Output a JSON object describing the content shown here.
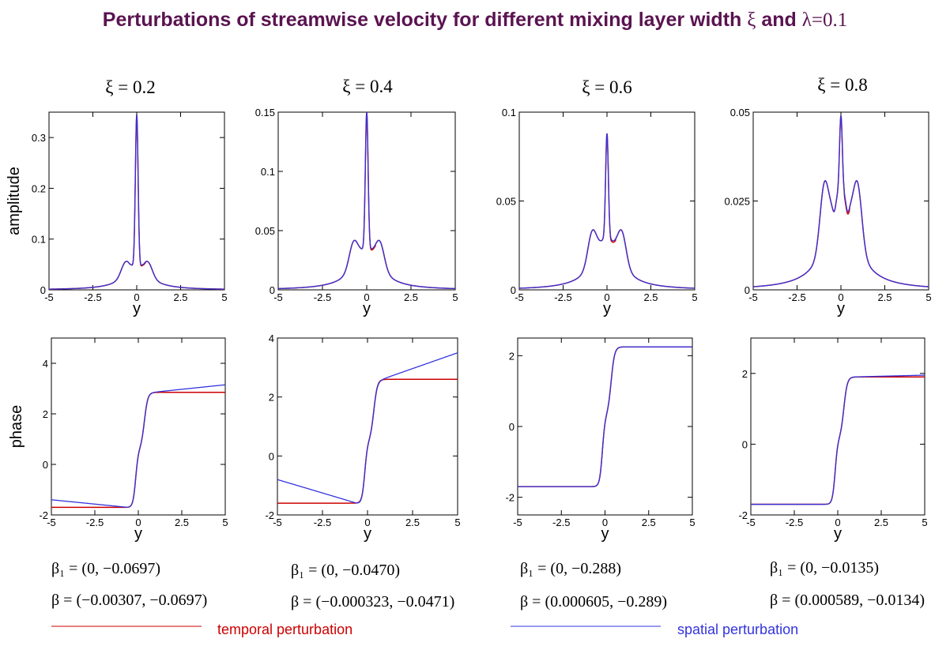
{
  "title": {
    "main": "Perturbations of streamwise velocity for different mixing layer width ",
    "xi_symbol": "ξ",
    "and": " and ",
    "lambda_expr": "λ=0.1"
  },
  "colors": {
    "temporal": "#cc0000",
    "spatial": "#3333dd",
    "title": "#5a1350"
  },
  "legend": {
    "temporal": "temporal perturbation",
    "spatial": "spatial perturbation"
  },
  "chart_data": [
    {
      "panel": "amplitude",
      "type": "line",
      "subtitle": "ξ = 0.2",
      "xlabel": "y",
      "ylabel": "amplitude",
      "xlim": [
        -5,
        5
      ],
      "ylim": [
        0,
        0.35
      ],
      "x_ticks": [
        "-5",
        "-2.5",
        "0",
        "2.5",
        "5"
      ],
      "y_ticks": [
        "0",
        "0.1",
        "0.2",
        "0.3"
      ],
      "params": {
        "peak": 0.345,
        "side": 0.07,
        "sidepos": 0.65,
        "dip": 0.05,
        "dippos": 0.3
      }
    },
    {
      "panel": "amplitude",
      "type": "line",
      "subtitle": "ξ = 0.4",
      "xlabel": "y",
      "ylabel": "",
      "xlim": [
        -5,
        5
      ],
      "ylim": [
        0,
        0.15
      ],
      "x_ticks": [
        "-5",
        "-2.5",
        "0",
        "2.5",
        "5"
      ],
      "y_ticks": [
        "0",
        "0.05",
        "0.1",
        "0.15"
      ],
      "params": {
        "peak": 0.15,
        "side": 0.055,
        "sidepos": 0.75,
        "dip": 0.038,
        "dippos": 0.3
      }
    },
    {
      "panel": "amplitude",
      "type": "line",
      "subtitle": "ξ = 0.6",
      "xlabel": "y",
      "ylabel": "",
      "xlim": [
        -5,
        5
      ],
      "ylim": [
        0,
        0.1
      ],
      "x_ticks": [
        "-5",
        "-2.5",
        "0",
        "2.5",
        "5"
      ],
      "y_ticks": [
        "0",
        "0.05",
        "0.1"
      ],
      "params": {
        "peak": 0.088,
        "side": 0.047,
        "sidepos": 0.85,
        "dip": 0.03,
        "dippos": 0.35
      }
    },
    {
      "panel": "amplitude",
      "type": "line",
      "subtitle": "ξ = 0.8",
      "xlabel": "y",
      "ylabel": "",
      "xlim": [
        -5,
        5
      ],
      "ylim": [
        0,
        0.05
      ],
      "x_ticks": [
        "-5",
        "-2.5",
        "0",
        "2.5",
        "5"
      ],
      "y_ticks": [
        "0",
        "0.025",
        "0.05"
      ],
      "params": {
        "peak": 0.049,
        "side": 0.045,
        "sidepos": 0.95,
        "dip": 0.022,
        "dippos": 0.4
      }
    },
    {
      "panel": "phase",
      "type": "line",
      "xlabel": "y",
      "ylabel": "phase",
      "xlim": [
        -5,
        5
      ],
      "ylim": [
        -2,
        5
      ],
      "x_ticks": [
        "-5",
        "-2.5",
        "0",
        "2.5",
        "5"
      ],
      "y_ticks": [
        "-2",
        "0",
        "2",
        "4"
      ],
      "params": {
        "low": -1.7,
        "high": 2.85,
        "mid": 0.6,
        "spatial_left": -1.4,
        "spatial_right": 3.15
      },
      "beta1": "β₁ = (0, −0.0697)",
      "beta": "β = (−0.00307, −0.0697)"
    },
    {
      "panel": "phase",
      "type": "line",
      "xlabel": "y",
      "ylabel": "",
      "xlim": [
        -5,
        5
      ],
      "ylim": [
        -2,
        4
      ],
      "x_ticks": [
        "-5",
        "-2.5",
        "0",
        "2.5",
        "5"
      ],
      "y_ticks": [
        "-2",
        "0",
        "2",
        "4"
      ],
      "params": {
        "low": -1.6,
        "high": 2.6,
        "mid": 0.5,
        "spatial_left": -0.8,
        "spatial_right": 3.5
      },
      "beta1": "β₁ = (0, −0.0470)",
      "beta": "β = (−0.000323, −0.0471)"
    },
    {
      "panel": "phase",
      "type": "line",
      "xlabel": "y",
      "ylabel": "",
      "xlim": [
        -5,
        5
      ],
      "ylim": [
        -2.5,
        2.5
      ],
      "x_ticks": [
        "-5",
        "-2.5",
        "0",
        "2.5",
        "5"
      ],
      "y_ticks": [
        "-2",
        "0",
        "2"
      ],
      "params": {
        "low": -1.7,
        "high": 2.25,
        "mid": 0.3,
        "spatial_left": -1.7,
        "spatial_right": 2.25
      },
      "beta1": "β₁ = (0, −0.288)",
      "beta": "β = (0.000605, −0.289)"
    },
    {
      "panel": "phase",
      "type": "line",
      "xlabel": "y",
      "ylabel": "",
      "xlim": [
        -5,
        5
      ],
      "ylim": [
        -2,
        3
      ],
      "x_ticks": [
        "-5",
        "-2.5",
        "0",
        "2.5",
        "5"
      ],
      "y_ticks": [
        "-2",
        "0",
        "2"
      ],
      "params": {
        "low": -1.7,
        "high": 1.9,
        "mid": 0.15,
        "spatial_left": -1.7,
        "spatial_right": 1.95
      },
      "beta1": "β₁ = (0, −0.0135)",
      "beta": "β = (0.000589, −0.0134)"
    }
  ]
}
